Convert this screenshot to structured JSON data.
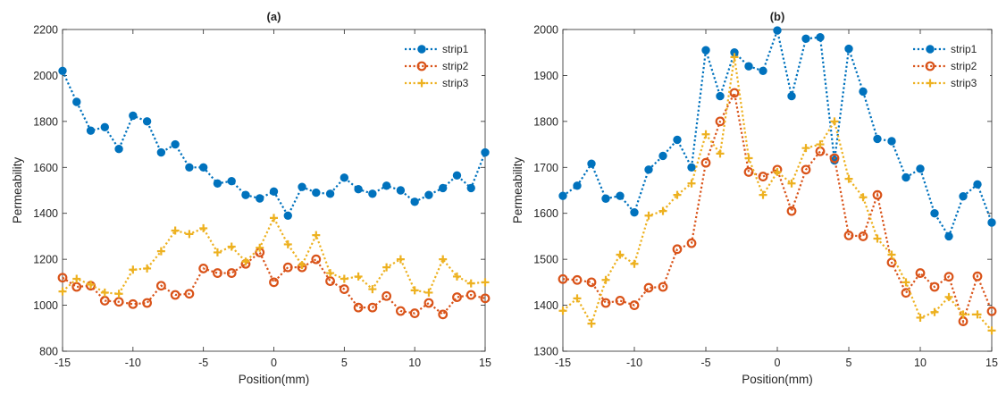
{
  "chart_data": [
    {
      "type": "line",
      "title": "(a)",
      "xlabel": "Position(mm)",
      "ylabel": "Permeability",
      "xlim": [
        -15,
        15
      ],
      "ylim": [
        800,
        2200
      ],
      "xticks": [
        -15,
        -10,
        -5,
        0,
        5,
        10,
        15
      ],
      "yticks": [
        800,
        1000,
        1200,
        1400,
        1600,
        1800,
        2000,
        2200
      ],
      "grid": false,
      "legend_position": "top-right",
      "x": [
        -15,
        -14,
        -13,
        -12,
        -11,
        -10,
        -9,
        -8,
        -7,
        -6,
        -5,
        -4,
        -3,
        -2,
        -1,
        0,
        1,
        2,
        3,
        4,
        5,
        6,
        7,
        8,
        9,
        10,
        11,
        12,
        13,
        14,
        15
      ],
      "series": [
        {
          "name": "strip1",
          "color": "#0072BD",
          "marker": "dot",
          "values": [
            2020,
            1885,
            1760,
            1775,
            1680,
            1825,
            1800,
            1665,
            1700,
            1600,
            1600,
            1530,
            1540,
            1480,
            1465,
            1495,
            1390,
            1515,
            1490,
            1485,
            1555,
            1505,
            1485,
            1520,
            1500,
            1450,
            1480,
            1510,
            1565,
            1510,
            1665
          ]
        },
        {
          "name": "strip2",
          "color": "#D95319",
          "marker": "circle",
          "values": [
            1120,
            1080,
            1085,
            1020,
            1015,
            1005,
            1010,
            1085,
            1045,
            1050,
            1160,
            1140,
            1140,
            1180,
            1230,
            1100,
            1165,
            1165,
            1200,
            1105,
            1070,
            990,
            990,
            1040,
            975,
            965,
            1010,
            960,
            1035,
            1045,
            1030
          ]
        },
        {
          "name": "strip3",
          "color": "#EDB120",
          "marker": "plus",
          "values": [
            1060,
            1115,
            1090,
            1055,
            1050,
            1155,
            1160,
            1235,
            1325,
            1310,
            1335,
            1230,
            1255,
            1190,
            1250,
            1380,
            1265,
            1175,
            1305,
            1140,
            1115,
            1125,
            1070,
            1165,
            1200,
            1065,
            1055,
            1200,
            1125,
            1095,
            1100
          ]
        }
      ]
    },
    {
      "type": "line",
      "title": "(b)",
      "xlabel": "Position(mm)",
      "ylabel": "Permeability",
      "xlim": [
        -15,
        15
      ],
      "ylim": [
        1300,
        2000
      ],
      "xticks": [
        -15,
        -10,
        -5,
        0,
        5,
        10,
        15
      ],
      "yticks": [
        1300,
        1400,
        1500,
        1600,
        1700,
        1800,
        1900,
        2000
      ],
      "grid": false,
      "legend_position": "top-right",
      "x": [
        -15,
        -14,
        -13,
        -12,
        -11,
        -10,
        -9,
        -8,
        -7,
        -6,
        -5,
        -4,
        -3,
        -2,
        -1,
        0,
        1,
        2,
        3,
        4,
        5,
        6,
        7,
        8,
        9,
        10,
        11,
        12,
        13,
        14,
        15
      ],
      "series": [
        {
          "name": "strip1",
          "color": "#0072BD",
          "marker": "dot",
          "values": [
            1638,
            1660,
            1708,
            1632,
            1638,
            1602,
            1695,
            1725,
            1760,
            1700,
            1955,
            1855,
            1950,
            1920,
            1910,
            1998,
            1855,
            1980,
            1983,
            1715,
            1958,
            1865,
            1762,
            1757,
            1678,
            1697,
            1600,
            1550,
            1637,
            1663,
            1580
          ]
        },
        {
          "name": "strip2",
          "color": "#D95319",
          "marker": "circle",
          "values": [
            1457,
            1455,
            1450,
            1405,
            1410,
            1400,
            1438,
            1440,
            1522,
            1535,
            1710,
            1800,
            1862,
            1690,
            1680,
            1695,
            1605,
            1695,
            1735,
            1720,
            1552,
            1550,
            1640,
            1493,
            1427,
            1470,
            1440,
            1462,
            1365,
            1463,
            1387
          ]
        },
        {
          "name": "strip3",
          "color": "#EDB120",
          "marker": "plus",
          "values": [
            1388,
            1415,
            1360,
            1455,
            1510,
            1490,
            1595,
            1605,
            1640,
            1665,
            1772,
            1730,
            1940,
            1720,
            1640,
            1690,
            1665,
            1742,
            1750,
            1800,
            1675,
            1635,
            1545,
            1510,
            1450,
            1373,
            1385,
            1418,
            1380,
            1380,
            1345
          ]
        }
      ]
    }
  ]
}
